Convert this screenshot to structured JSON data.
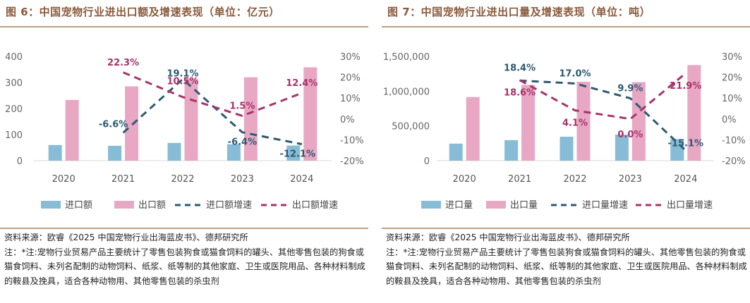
{
  "chart_data": [
    {
      "type": "bar",
      "title": "图 6：中国宠物行业进出口额及增速表现（单位：亿元）",
      "categories": [
        "2020",
        "2021",
        "2022",
        "2023",
        "2024"
      ],
      "ylim_left": [
        0,
        400
      ],
      "yticks_left": [
        "0",
        "100",
        "200",
        "300",
        "400"
      ],
      "ylim_right": [
        -20,
        30
      ],
      "yticks_right": [
        "-20%",
        "-10%",
        "0%",
        "10%",
        "20%",
        "30%"
      ],
      "series": [
        {
          "name": "进口额",
          "kind": "bar",
          "axis": "left",
          "color": "#86bcd6",
          "values": [
            60,
            57,
            68,
            63,
            58
          ]
        },
        {
          "name": "出口额",
          "kind": "bar",
          "axis": "left",
          "color": "#e8a8c4",
          "values": [
            233,
            285,
            315,
            320,
            358
          ]
        },
        {
          "name": "进口额增速",
          "kind": "line",
          "axis": "right",
          "color": "#2e5a73",
          "dash": true,
          "values": [
            null,
            -6.6,
            19.1,
            -6.4,
            -12.1
          ],
          "labels": [
            "",
            "-6.6%",
            "19.1%",
            "-6.4%",
            "-12.1%"
          ]
        },
        {
          "name": "出口额增速",
          "kind": "line",
          "axis": "right",
          "color": "#a8336a",
          "dash": true,
          "values": [
            null,
            22.3,
            10.5,
            1.5,
            12.4
          ],
          "labels": [
            "",
            "22.3%",
            "10.5%",
            "1.5%",
            "12.4%"
          ]
        }
      ],
      "legend_position": "bottom",
      "source": "资料来源：欧睿《2025 中国宠物行业出海蓝皮书》、德邦研究所",
      "note": "注：*注:宠物行业贸易产品主要统计了零售包装狗食或猫食饲料的罐头、其他零售包装的狗食或猫食饲料、未列名配制的动物饲料、纸浆、纸等制的其他家庭、卫生或医院用品、各种材料制成的鞍县及挽具，适合各种动物用、其他零售包装的杀虫剂"
    },
    {
      "type": "bar",
      "title": "图 7：中国宠物行业进出口量及增速表现（单位：吨）",
      "categories": [
        "2020",
        "2021",
        "2022",
        "2023",
        "2024"
      ],
      "ylim_left": [
        0,
        1500000
      ],
      "yticks_left": [
        "0",
        "500,000",
        "1,000,000",
        "1,500,000"
      ],
      "ylim_right": [
        -20,
        30
      ],
      "yticks_right": [
        "-20%",
        "-10%",
        "0%",
        "10%",
        "20%",
        "30%"
      ],
      "series": [
        {
          "name": "进口量",
          "kind": "bar",
          "axis": "left",
          "color": "#86bcd6",
          "values": [
            245000,
            295000,
            345000,
            375000,
            310000
          ]
        },
        {
          "name": "出口量",
          "kind": "bar",
          "axis": "left",
          "color": "#e8a8c4",
          "values": [
            915000,
            1090000,
            1135000,
            1130000,
            1375000
          ]
        },
        {
          "name": "进口量增速",
          "kind": "line",
          "axis": "right",
          "color": "#2e5a73",
          "dash": true,
          "values": [
            null,
            18.4,
            17.0,
            9.9,
            -15.1
          ],
          "labels": [
            "",
            "18.4%",
            "17.0%",
            "9.9%",
            "-15.1%"
          ]
        },
        {
          "name": "出口量增速",
          "kind": "line",
          "axis": "right",
          "color": "#a8336a",
          "dash": true,
          "values": [
            null,
            18.6,
            4.1,
            0.0,
            21.9
          ],
          "labels": [
            "",
            "18.6%",
            "4.1%",
            "0.0%",
            "21.9%"
          ]
        }
      ],
      "legend_position": "bottom",
      "source": "资料来源：欧睿《2025 中国宠物行业出海蓝皮书》、德邦研究所",
      "note": "注：*注:宠物行业贸易产品主要统计了零售包装狗食或猫食饲料的罐头、其他零售包装的狗食或猫食饲料、未列名配制的动物饲料、纸浆、纸等制的其他家庭、卫生或医院用品、各种材料制成的鞍县及挽具，适合各种动物用、其他零售包装的杀虫剂"
    }
  ]
}
